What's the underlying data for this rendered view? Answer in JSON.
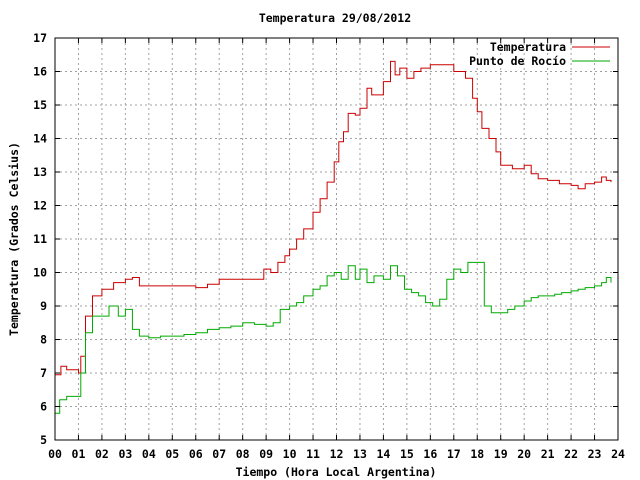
{
  "chart_data": {
    "type": "line",
    "title": "Temperatura 29/08/2012",
    "xlabel": "Tiempo (Hora Local Argentina)",
    "ylabel": "Temperatura (Grados Celsius)",
    "xlim": [
      0,
      24
    ],
    "ylim": [
      5,
      17
    ],
    "xticks": [
      "00",
      "01",
      "02",
      "03",
      "04",
      "05",
      "06",
      "07",
      "08",
      "09",
      "10",
      "11",
      "12",
      "13",
      "14",
      "15",
      "16",
      "17",
      "18",
      "19",
      "20",
      "21",
      "22",
      "23",
      "24"
    ],
    "yticks": [
      "5",
      "6",
      "7",
      "8",
      "9",
      "10",
      "11",
      "12",
      "13",
      "14",
      "15",
      "16",
      "17"
    ],
    "grid": true,
    "legend_position": "top-right",
    "series": [
      {
        "name": "Temperatura",
        "color": "#cc0000",
        "x": [
          0,
          0.25,
          0.5,
          1.0,
          1.1,
          1.3,
          1.6,
          2.0,
          2.5,
          3.0,
          3.3,
          3.6,
          4.0,
          5.0,
          5.5,
          6.0,
          6.5,
          7.0,
          7.5,
          8.0,
          8.5,
          8.9,
          9.2,
          9.5,
          9.8,
          10.0,
          10.3,
          10.6,
          11.0,
          11.3,
          11.6,
          11.9,
          12.1,
          12.3,
          12.5,
          12.8,
          13.0,
          13.3,
          13.5,
          14.0,
          14.3,
          14.5,
          14.7,
          15.0,
          15.3,
          15.6,
          16.0,
          16.5,
          17.0,
          17.5,
          17.8,
          18.0,
          18.2,
          18.5,
          18.8,
          19.0,
          19.5,
          20.0,
          20.3,
          20.6,
          21.0,
          21.5,
          22.0,
          22.3,
          22.6,
          23.0,
          23.3,
          23.5,
          23.7
        ],
        "y": [
          6.95,
          7.2,
          7.1,
          7.0,
          7.5,
          8.7,
          9.3,
          9.5,
          9.7,
          9.8,
          9.85,
          9.6,
          9.6,
          9.6,
          9.6,
          9.55,
          9.65,
          9.8,
          9.8,
          9.8,
          9.8,
          10.1,
          10.0,
          10.3,
          10.5,
          10.7,
          11.0,
          11.3,
          11.8,
          12.2,
          12.7,
          13.3,
          13.9,
          14.2,
          14.75,
          14.7,
          14.9,
          15.5,
          15.3,
          15.7,
          16.3,
          15.9,
          16.1,
          15.8,
          16.0,
          16.1,
          16.2,
          16.2,
          16.0,
          15.8,
          15.2,
          14.8,
          14.3,
          14.0,
          13.6,
          13.2,
          13.1,
          13.2,
          12.95,
          12.8,
          12.75,
          12.65,
          12.6,
          12.5,
          12.65,
          12.7,
          12.85,
          12.75,
          12.7
        ]
      },
      {
        "name": "Punto de Rocío",
        "color": "#00aa00",
        "x": [
          0,
          0.2,
          0.5,
          1.0,
          1.1,
          1.3,
          1.6,
          2.0,
          2.3,
          2.7,
          3.0,
          3.3,
          3.6,
          4.0,
          4.5,
          5.0,
          5.5,
          6.0,
          6.5,
          7.0,
          7.5,
          8.0,
          8.5,
          9.0,
          9.3,
          9.6,
          10.0,
          10.3,
          10.6,
          11.0,
          11.3,
          11.6,
          11.9,
          12.2,
          12.5,
          12.8,
          13.0,
          13.3,
          13.6,
          14.0,
          14.3,
          14.6,
          14.9,
          15.2,
          15.5,
          15.8,
          16.1,
          16.4,
          16.7,
          17.0,
          17.3,
          17.6,
          18.0,
          18.3,
          18.6,
          19.0,
          19.3,
          19.6,
          20.0,
          20.3,
          20.6,
          21.0,
          21.3,
          21.6,
          22.0,
          22.3,
          22.6,
          23.0,
          23.3,
          23.5,
          23.7
        ],
        "y": [
          5.8,
          6.2,
          6.3,
          6.3,
          7.0,
          8.2,
          8.7,
          8.7,
          9.0,
          8.7,
          8.9,
          8.3,
          8.1,
          8.05,
          8.1,
          8.1,
          8.15,
          8.2,
          8.3,
          8.35,
          8.4,
          8.5,
          8.45,
          8.4,
          8.5,
          8.9,
          9.0,
          9.1,
          9.3,
          9.5,
          9.6,
          9.9,
          10.0,
          9.8,
          10.2,
          9.8,
          10.1,
          9.7,
          9.9,
          9.8,
          10.2,
          9.9,
          9.5,
          9.4,
          9.3,
          9.1,
          9.0,
          9.2,
          9.8,
          10.1,
          10.0,
          10.3,
          10.3,
          9.0,
          8.8,
          8.8,
          8.9,
          9.0,
          9.15,
          9.25,
          9.3,
          9.3,
          9.35,
          9.4,
          9.45,
          9.5,
          9.55,
          9.6,
          9.7,
          9.85,
          9.7
        ]
      }
    ]
  }
}
